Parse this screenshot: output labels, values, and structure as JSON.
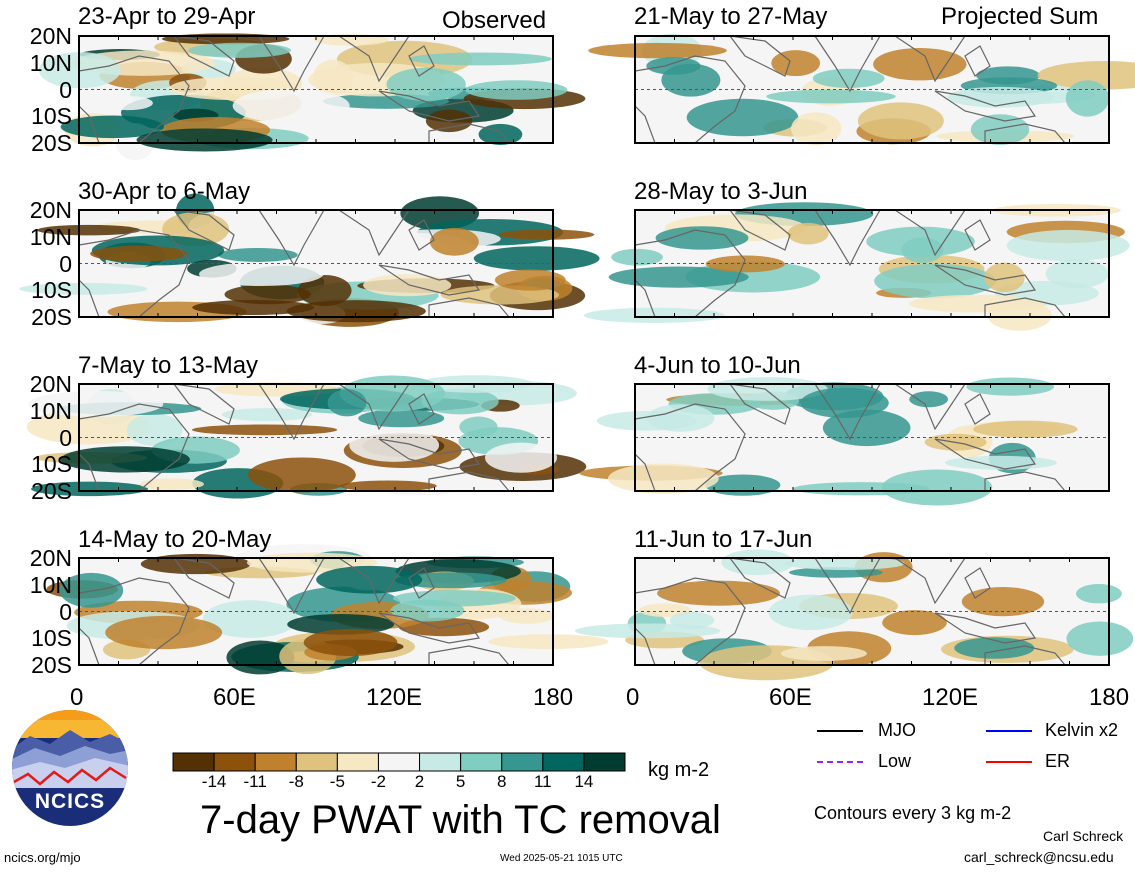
{
  "panels_left": [
    {
      "title": "23-Apr to 29-Apr",
      "tag": "Observed"
    },
    {
      "title": "30-Apr to 6-May",
      "tag": ""
    },
    {
      "title": "7-May to 13-May",
      "tag": ""
    },
    {
      "title": "14-May to 20-May",
      "tag": ""
    }
  ],
  "panels_right": [
    {
      "title": "21-May to 27-May",
      "tag": "Projected Sum"
    },
    {
      "title": "28-May to 3-Jun",
      "tag": ""
    },
    {
      "title": "4-Jun to 10-Jun",
      "tag": ""
    },
    {
      "title": "11-Jun to 17-Jun",
      "tag": ""
    }
  ],
  "lat_labels": [
    "20N",
    "10N",
    "0",
    "10S",
    "20S"
  ],
  "lon_labels": [
    "0",
    "60E",
    "120E",
    "180"
  ],
  "colorbar": {
    "labels": [
      "-14",
      "-11",
      "-8",
      "-5",
      "-2",
      "2",
      "5",
      "8",
      "11",
      "14"
    ],
    "colors": [
      "#543005",
      "#8c510a",
      "#bf812d",
      "#dfc27d",
      "#f6e8c3",
      "#f5f5f5",
      "#c7eae5",
      "#80cdc1",
      "#35978f",
      "#01665e",
      "#003c30"
    ],
    "unit": "kg m-2"
  },
  "main_title": "7-day PWAT with TC removal",
  "legend": {
    "items": [
      {
        "label": "MJO",
        "color": "#000000"
      },
      {
        "label": "Kelvin x2",
        "color": "#0000ff"
      },
      {
        "label": "Low",
        "color": "#a020f0"
      },
      {
        "label": "ER",
        "color": "#ff0000"
      }
    ],
    "contour_note": "Contours every 3 kg m-2"
  },
  "footer": {
    "left": "ncics.org/mjo",
    "center": "Wed 2025-05-21 1015 UTC",
    "author": "Carl Schreck",
    "email": "carl_schreck@ncsu.edu"
  },
  "logo": {
    "text": "NCICS",
    "icon": "ncics-logo-icon"
  }
}
